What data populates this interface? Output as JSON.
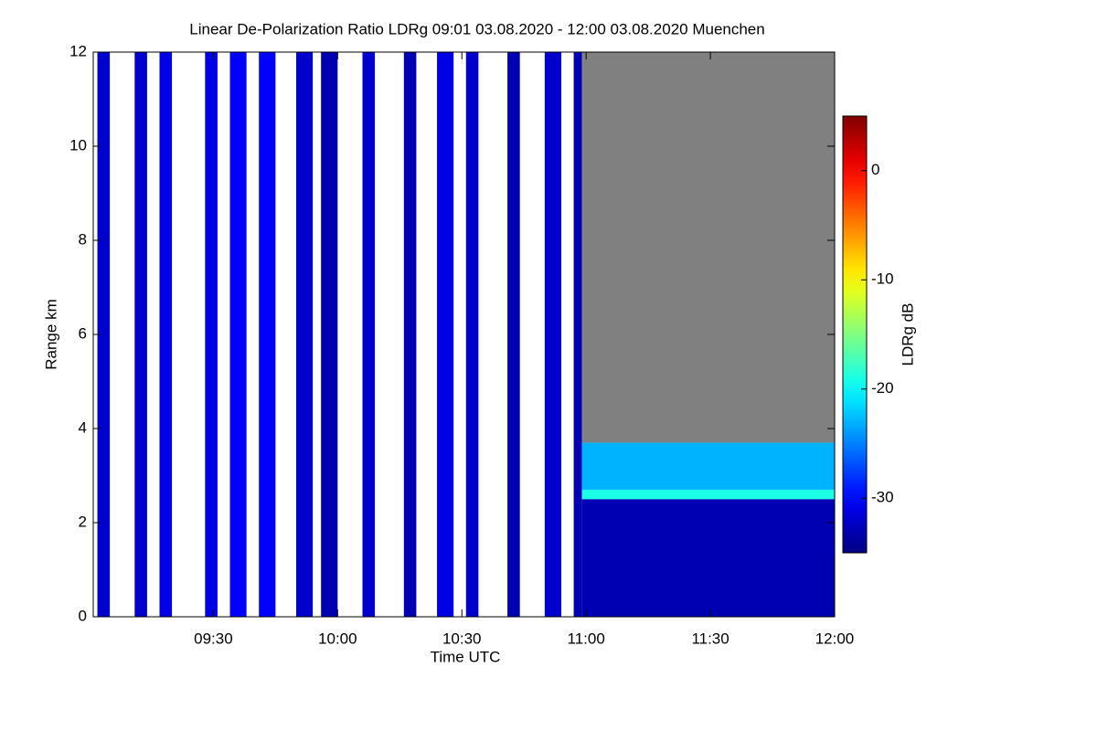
{
  "chart_data": {
    "type": "heatmap",
    "title": "Linear De-Polarization Ratio LDRg   09:01 03.08.2020 - 12:00 03.08.2020 Muenchen",
    "x_label": "Time UTC",
    "y_label": "Range km",
    "colorbar_label": "LDRg dB",
    "xlim": [
      "09:01",
      "12:00"
    ],
    "xticks": [
      "09:30",
      "10:00",
      "10:30",
      "11:00",
      "11:30",
      "12:00"
    ],
    "ylim": [
      0,
      12
    ],
    "yticks": [
      0,
      2,
      4,
      6,
      8,
      10,
      12
    ],
    "clim": [
      -35,
      5
    ],
    "cticks": [
      0,
      -10,
      -20,
      -30
    ],
    "cells": [
      {
        "x0": "09:02",
        "x1": "09:05",
        "y0": 0,
        "y1": 12,
        "value": -32
      },
      {
        "x0": "09:11",
        "x1": "09:14",
        "y0": 0,
        "y1": 12,
        "value": -32
      },
      {
        "x0": "09:17",
        "x1": "09:20",
        "y0": 0,
        "y1": 12,
        "value": -31
      },
      {
        "x0": "09:28",
        "x1": "09:31",
        "y0": 0,
        "y1": 12,
        "value": -31
      },
      {
        "x0": "09:34",
        "x1": "09:38",
        "y0": 0,
        "y1": 12,
        "value": -30
      },
      {
        "x0": "09:41",
        "x1": "09:45",
        "y0": 0,
        "y1": 12,
        "value": -30
      },
      {
        "x0": "09:50",
        "x1": "09:54",
        "y0": 0,
        "y1": 12,
        "value": -32
      },
      {
        "x0": "09:56",
        "x1": "10:00",
        "y0": 0,
        "y1": 12,
        "value": -33
      },
      {
        "x0": "10:06",
        "x1": "10:09",
        "y0": 0,
        "y1": 12,
        "value": -32
      },
      {
        "x0": "10:16",
        "x1": "10:19",
        "y0": 0,
        "y1": 12,
        "value": -33
      },
      {
        "x0": "10:24",
        "x1": "10:28",
        "y0": 0,
        "y1": 12,
        "value": -31
      },
      {
        "x0": "10:31",
        "x1": "10:34",
        "y0": 0,
        "y1": 12,
        "value": -32
      },
      {
        "x0": "10:41",
        "x1": "10:44",
        "y0": 0,
        "y1": 12,
        "value": -33
      },
      {
        "x0": "10:50",
        "x1": "10:54",
        "y0": 0,
        "y1": 12,
        "value": -32
      },
      {
        "x0": "10:57",
        "x1": "10:59",
        "y0": 0,
        "y1": 12,
        "value": -33
      },
      {
        "x0": "10:59",
        "x1": "12:00",
        "y0": 0,
        "y1": 2.5,
        "value": -33
      },
      {
        "x0": "10:59",
        "x1": "12:00",
        "y0": 2.5,
        "y1": 2.7,
        "value": -19
      },
      {
        "x0": "10:59",
        "x1": "12:00",
        "y0": 2.7,
        "y1": 3.7,
        "value": -23
      },
      {
        "x0": "10:59",
        "x1": "12:00",
        "y0": 3.7,
        "y1": 12,
        "value": null
      }
    ]
  }
}
